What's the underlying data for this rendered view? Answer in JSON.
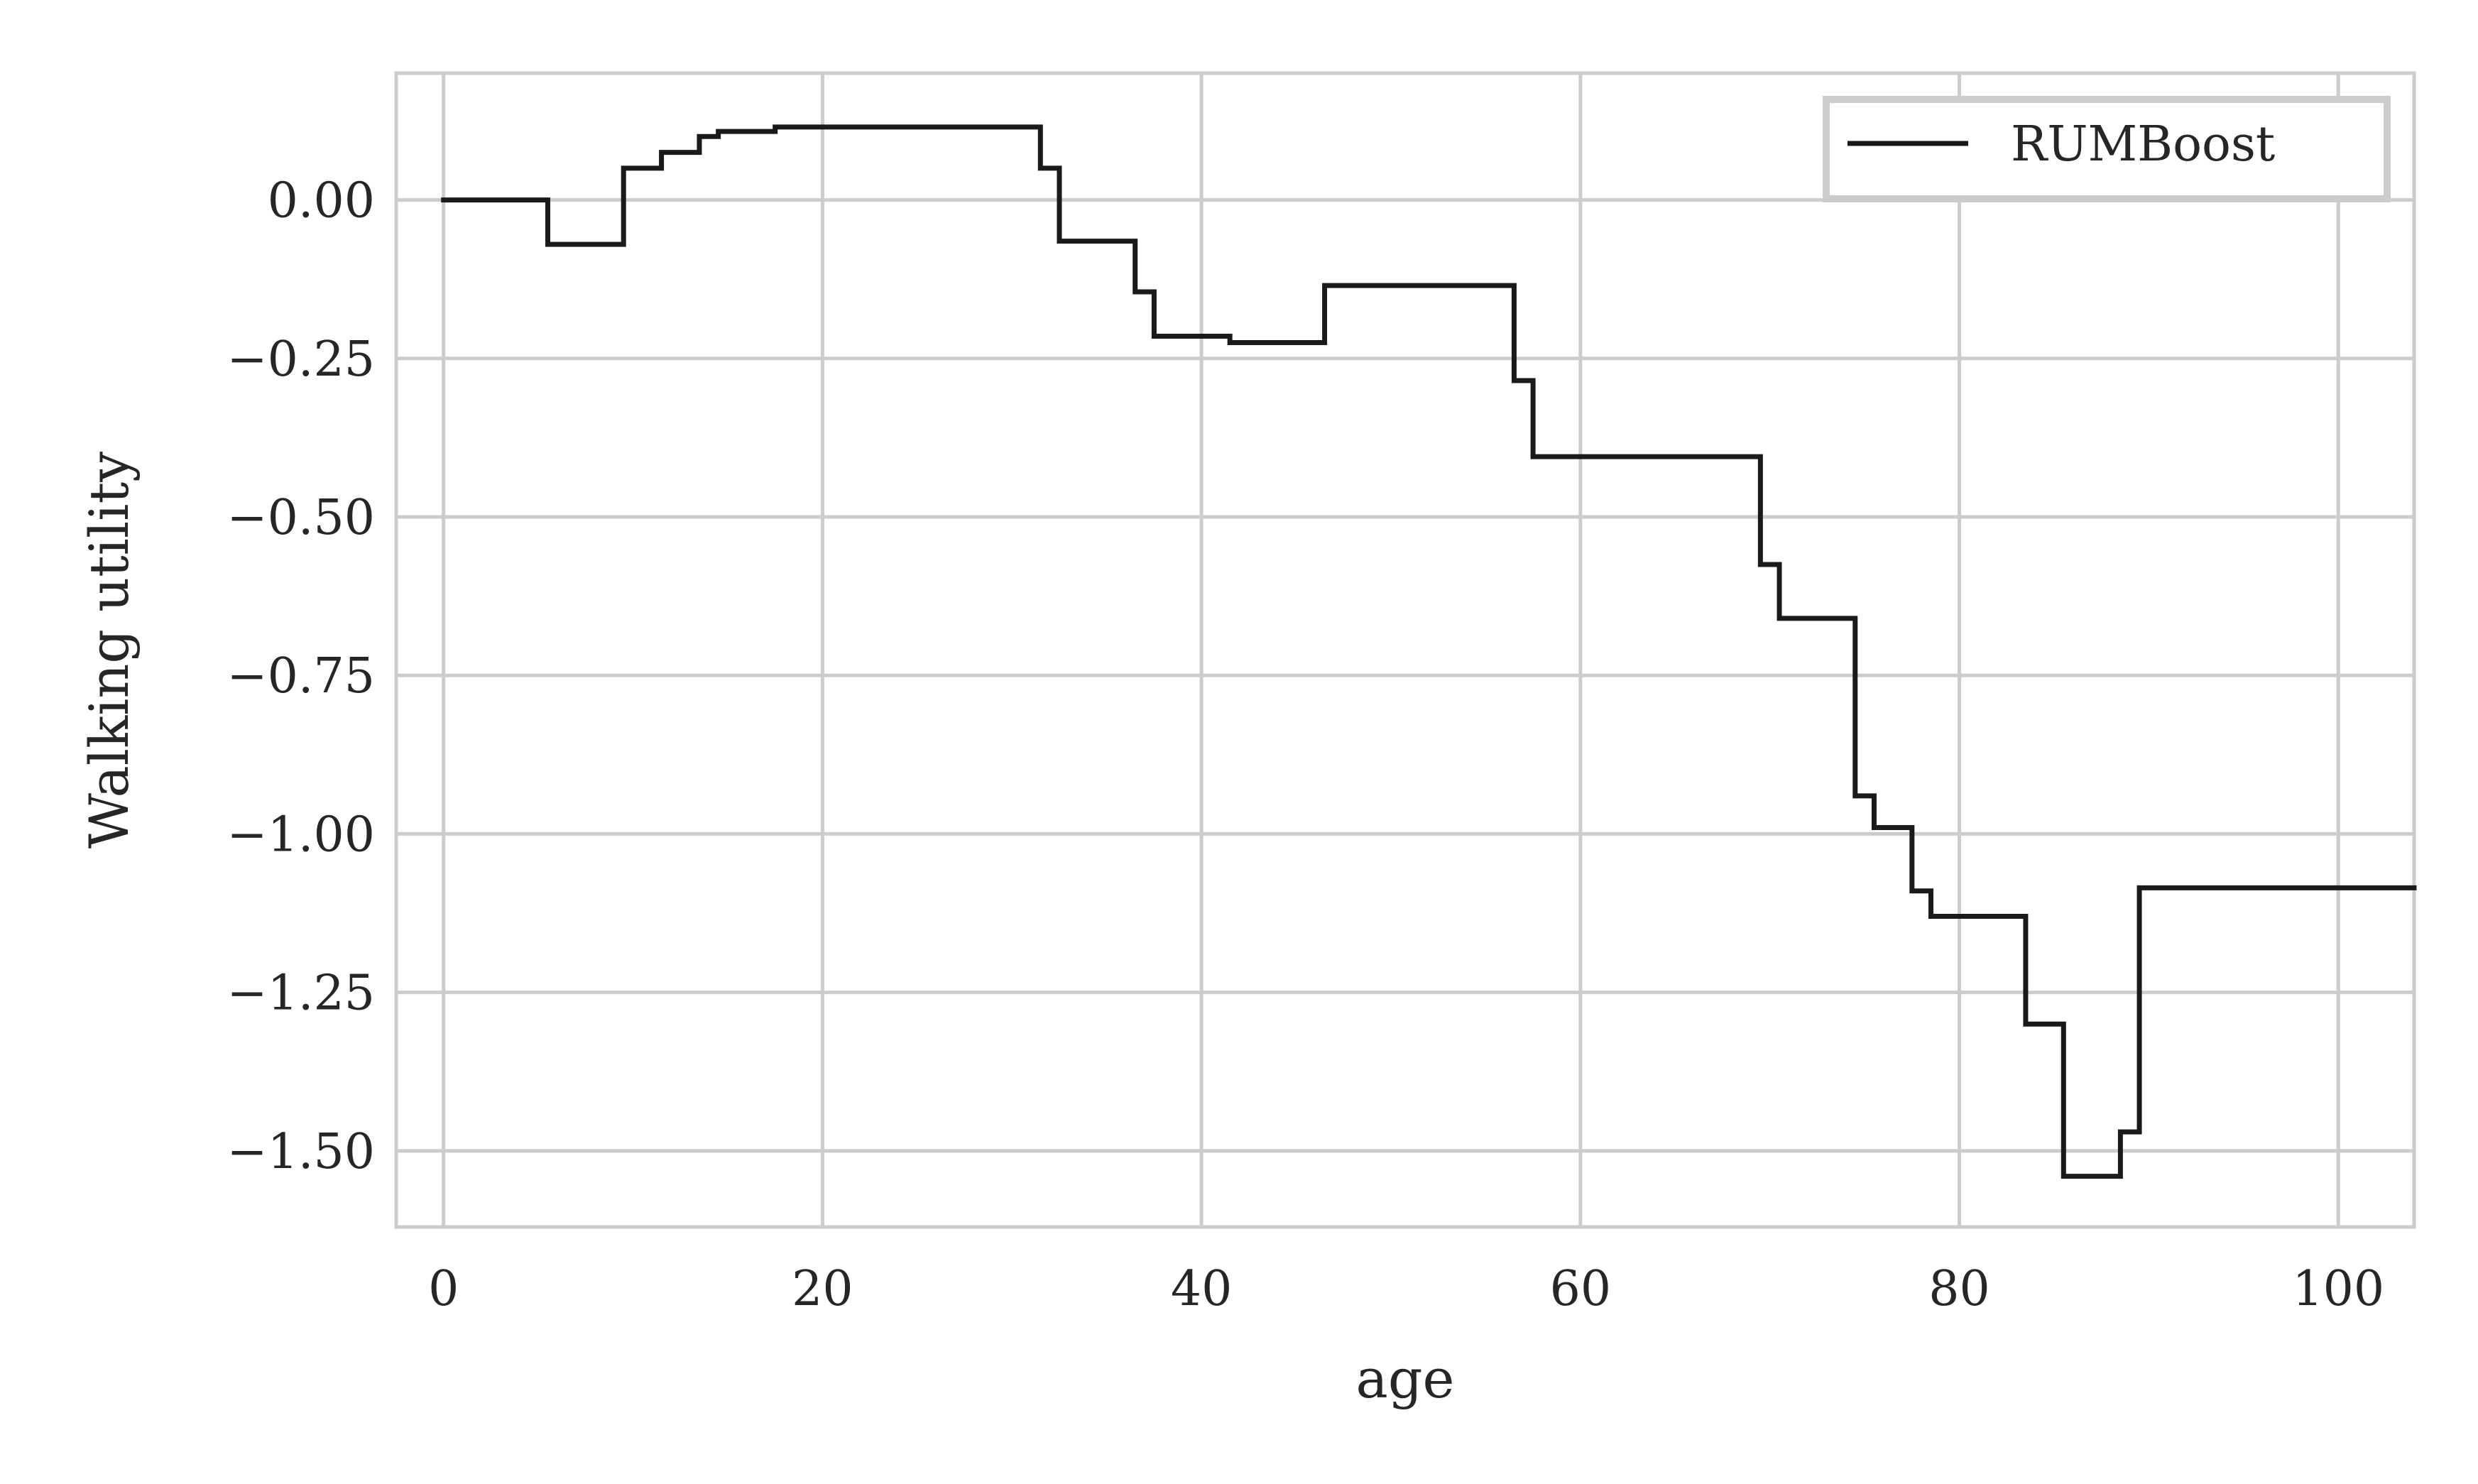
{
  "chart_data": {
    "type": "line",
    "title": "",
    "xlabel": "age",
    "ylabel": "Walking utility",
    "xlim": [
      -2.5,
      104
    ],
    "ylim": [
      -1.62,
      0.2
    ],
    "grid": true,
    "legend_position": "top-right",
    "x_ticks": [
      0,
      20,
      40,
      60,
      80,
      100
    ],
    "x_tick_labels": [
      "0",
      "20",
      "40",
      "60",
      "80",
      "100"
    ],
    "y_ticks": [
      0.0,
      -0.25,
      -0.5,
      -0.75,
      -1.0,
      -1.25,
      -1.5
    ],
    "y_tick_labels": [
      "0.00",
      "−0.25",
      "−0.50",
      "−0.75",
      "−1.00",
      "−1.25",
      "−1.50"
    ],
    "colors": {
      "line": "#1a1a1a",
      "grid": "#cccccc",
      "text": "#262626"
    },
    "series": [
      {
        "name": "RUMBoost",
        "step": "post",
        "x": [
          0,
          5.5,
          9.5,
          11.5,
          13.5,
          14.5,
          17.5,
          31.5,
          32.5,
          36.5,
          37.5,
          41.5,
          46.5,
          56.5,
          57.5,
          69.5,
          70.5,
          74.5,
          75.5,
          77.5,
          78.5,
          83.5,
          85.5,
          88.5,
          89.5,
          104
        ],
        "y": [
          0.0,
          -0.07,
          0.05,
          0.075,
          0.1,
          0.108,
          0.115,
          0.05,
          -0.065,
          -0.145,
          -0.215,
          -0.225,
          -0.135,
          -0.285,
          -0.405,
          -0.575,
          -0.66,
          -0.94,
          -0.99,
          -1.09,
          -1.13,
          -1.3,
          -1.54,
          -1.47,
          -1.085,
          -1.085
        ]
      }
    ]
  }
}
